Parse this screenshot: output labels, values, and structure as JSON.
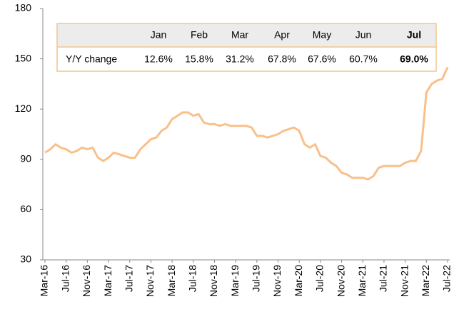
{
  "chart_data": {
    "type": "line",
    "categories": [
      "Mar-16",
      null,
      null,
      null,
      "Jul-16",
      null,
      null,
      null,
      "Nov-16",
      null,
      null,
      null,
      "Mar-17",
      null,
      null,
      null,
      "Jul-17",
      null,
      null,
      null,
      "Nov-17",
      null,
      null,
      null,
      "Mar-18",
      null,
      null,
      null,
      "Jul-18",
      null,
      null,
      null,
      "Nov-18",
      null,
      null,
      null,
      "Mar-19",
      null,
      null,
      null,
      "Jul-19",
      null,
      null,
      null,
      "Nov-19",
      null,
      null,
      null,
      "Mar-20",
      null,
      null,
      null,
      "Jul-20",
      null,
      null,
      null,
      "Nov-20",
      null,
      null,
      null,
      "Mar-21",
      null,
      null,
      null,
      "Jul-21",
      null,
      null,
      null,
      "Nov-21",
      null,
      null,
      null,
      "Mar-22",
      null,
      null,
      null,
      "Jul-22"
    ],
    "values": [
      94,
      96,
      99,
      97,
      96,
      94,
      95,
      97,
      96,
      97,
      91,
      89,
      91,
      94,
      93,
      92,
      91,
      91,
      96,
      99,
      102,
      103,
      107,
      109,
      114,
      116,
      118,
      118,
      116,
      117,
      112,
      111,
      111,
      110,
      111,
      110,
      110,
      110,
      110,
      109,
      104,
      104,
      103,
      104,
      105,
      107,
      108,
      109,
      107,
      99,
      97,
      99,
      92,
      91,
      88,
      86,
      82,
      81,
      79,
      79,
      79,
      78,
      80,
      85,
      86,
      86,
      86,
      86,
      88,
      89,
      89,
      95,
      130,
      135,
      137,
      138,
      145
    ],
    "color": "#f9c089",
    "ylim": [
      30,
      180
    ],
    "yticks": [
      30,
      60,
      90,
      120,
      150,
      180
    ],
    "grid": false
  },
  "inset_table": {
    "header": [
      "Jan",
      "Feb",
      "Mar",
      "Apr",
      "May",
      "Jun",
      "Jul"
    ],
    "row_label": "Y/Y change",
    "row": [
      "12.6%",
      "15.8%",
      "31.2%",
      "67.8%",
      "67.6%",
      "60.7%",
      "69.0%"
    ],
    "bold_column": 6
  }
}
